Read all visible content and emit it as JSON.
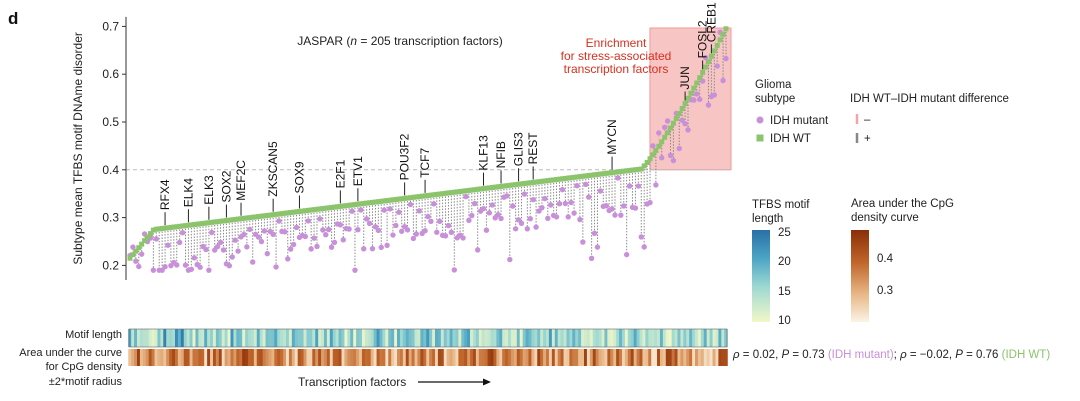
{
  "panel_label": "d",
  "chart_data": {
    "type": "scatter",
    "title_prefix": "JASPAR (",
    "title_n": "n",
    "title_suffix": " = 205 transcription factors)",
    "ylabel": "Subtype mean TFBS motif DNAme disorder",
    "yticks": [
      "0.2",
      "0.3",
      "0.4",
      "0.5",
      "0.6",
      "0.7"
    ],
    "ylim": [
      0.18,
      0.72
    ],
    "n_tfs": 205,
    "threshold": 0.4,
    "xlabel": "Transcription factors",
    "series": [
      {
        "name": "IDH mutant",
        "color": "#c890d8"
      },
      {
        "name": "IDH WT",
        "color": "#8cc46c"
      }
    ],
    "enrichment_text": [
      "Enrichment",
      "for stress-associated",
      "transcription factors"
    ],
    "enrichment_start_index": 179,
    "labeled_tfs": [
      {
        "name": "RFX4",
        "index": 12
      },
      {
        "name": "ELK4",
        "index": 20
      },
      {
        "name": "ELK3",
        "index": 27
      },
      {
        "name": "SOX2",
        "index": 33
      },
      {
        "name": "MEF2C",
        "index": 38
      },
      {
        "name": "ZKSCAN5",
        "index": 49
      },
      {
        "name": "SOX9",
        "index": 58
      },
      {
        "name": "E2F1",
        "index": 72
      },
      {
        "name": "ETV1",
        "index": 78
      },
      {
        "name": "POU3F2",
        "index": 94
      },
      {
        "name": "TCF7",
        "index": 101
      },
      {
        "name": "KLF13",
        "index": 121
      },
      {
        "name": "NFIB",
        "index": 127
      },
      {
        "name": "GLIS3",
        "index": 133
      },
      {
        "name": "REST",
        "index": 138
      },
      {
        "name": "MYCN",
        "index": 165
      },
      {
        "name": "JUN",
        "index": 190
      },
      {
        "name": "FOSL2",
        "index": 196
      },
      {
        "name": "CREB1",
        "index": 199
      }
    ],
    "legend_subtype_title": [
      "Glioma",
      "subtype"
    ],
    "legend_diff_title": "IDH WT–IDH mutant difference",
    "legend_diff_items": [
      {
        "sign": "–",
        "color": "#f4a3a8"
      },
      {
        "sign": "+",
        "color": "#888888"
      }
    ],
    "motif_length_legend": {
      "title": [
        "TFBS motif",
        "length"
      ],
      "ticks": [
        "25",
        "20",
        "15",
        "10"
      ],
      "range": [
        10,
        25
      ]
    },
    "cpg_legend": {
      "title": [
        "Area under the CpG",
        "density curve"
      ],
      "ticks": [
        "0.4",
        "0.3"
      ],
      "range": [
        0.22,
        0.48
      ]
    },
    "track_labels": {
      "motif": "Motif length",
      "cpg": [
        "Area under the curve",
        "for CpG density",
        "±2*motif radius"
      ]
    },
    "correlation": {
      "rho_sym": "ρ",
      "p_sym": "P",
      "mut_rho": " = 0.02, ",
      "mut_p": " = 0.73 ",
      "mut_label": "(IDH mutant)",
      "sep": "; ",
      "wt_rho": " = −0.02, ",
      "wt_p": " = 0.76 ",
      "wt_label": "(IDH WT)"
    }
  }
}
